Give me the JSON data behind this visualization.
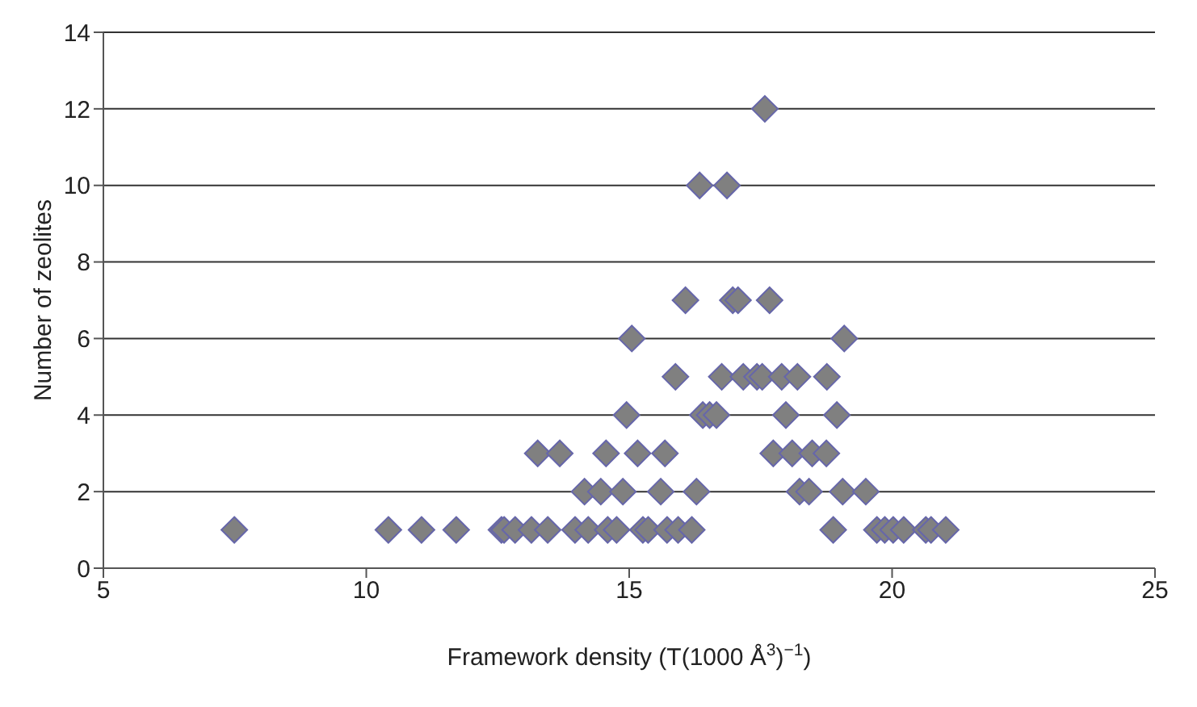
{
  "chart_data": {
    "type": "scatter",
    "xlabel": "Framework density (T(1000 Å$^{3}$)$^{−1}$)",
    "ylabel": "Number of zeolites",
    "x": [
      17.58,
      16.34,
      16.86,
      16.07,
      16.97,
      17.07,
      17.67,
      15.05,
      19.09,
      15.88,
      16.76,
      17.17,
      17.43,
      17.53,
      17.9,
      18.2,
      18.76,
      14.95,
      16.4,
      16.53,
      16.66,
      17.98,
      18.95,
      13.26,
      13.68,
      14.56,
      15.16,
      15.68,
      17.74,
      18.1,
      18.48,
      18.75,
      14.15,
      14.46,
      14.88,
      15.6,
      16.28,
      18.24,
      18.42,
      19.06,
      19.5,
      7.49,
      10.42,
      11.05,
      11.71,
      12.57,
      12.62,
      12.83,
      13.14,
      13.45,
      13.97,
      14.22,
      14.59,
      14.76,
      15.26,
      15.36,
      15.72,
      15.93,
      16.19,
      18.88,
      19.71,
      19.86,
      20.02,
      20.22,
      20.64,
      20.74,
      21.02
    ],
    "series": [
      {
        "color": "#808080",
        "values": [
          12,
          10,
          10,
          7,
          7,
          7,
          7,
          6,
          6,
          5,
          5,
          5,
          5,
          5,
          5,
          5,
          5,
          4,
          4,
          4,
          4,
          4,
          4,
          3,
          3,
          3,
          3,
          3,
          3,
          3,
          3,
          3,
          2,
          2,
          2,
          2,
          2,
          2,
          2,
          2,
          2,
          1,
          1,
          1,
          1,
          1,
          1,
          1,
          1,
          1,
          1,
          1,
          1,
          1,
          1,
          1,
          1,
          1,
          1,
          1,
          1,
          1,
          1,
          1,
          1,
          1,
          1
        ]
      }
    ],
    "xlim": [
      5,
      25
    ],
    "xticks": [
      5,
      10,
      15,
      20,
      25
    ],
    "ylim": [
      0,
      14
    ],
    "yticks": [
      0,
      2,
      4,
      6,
      8,
      10,
      12,
      14
    ],
    "grid": "y",
    "marker": "diamond"
  }
}
